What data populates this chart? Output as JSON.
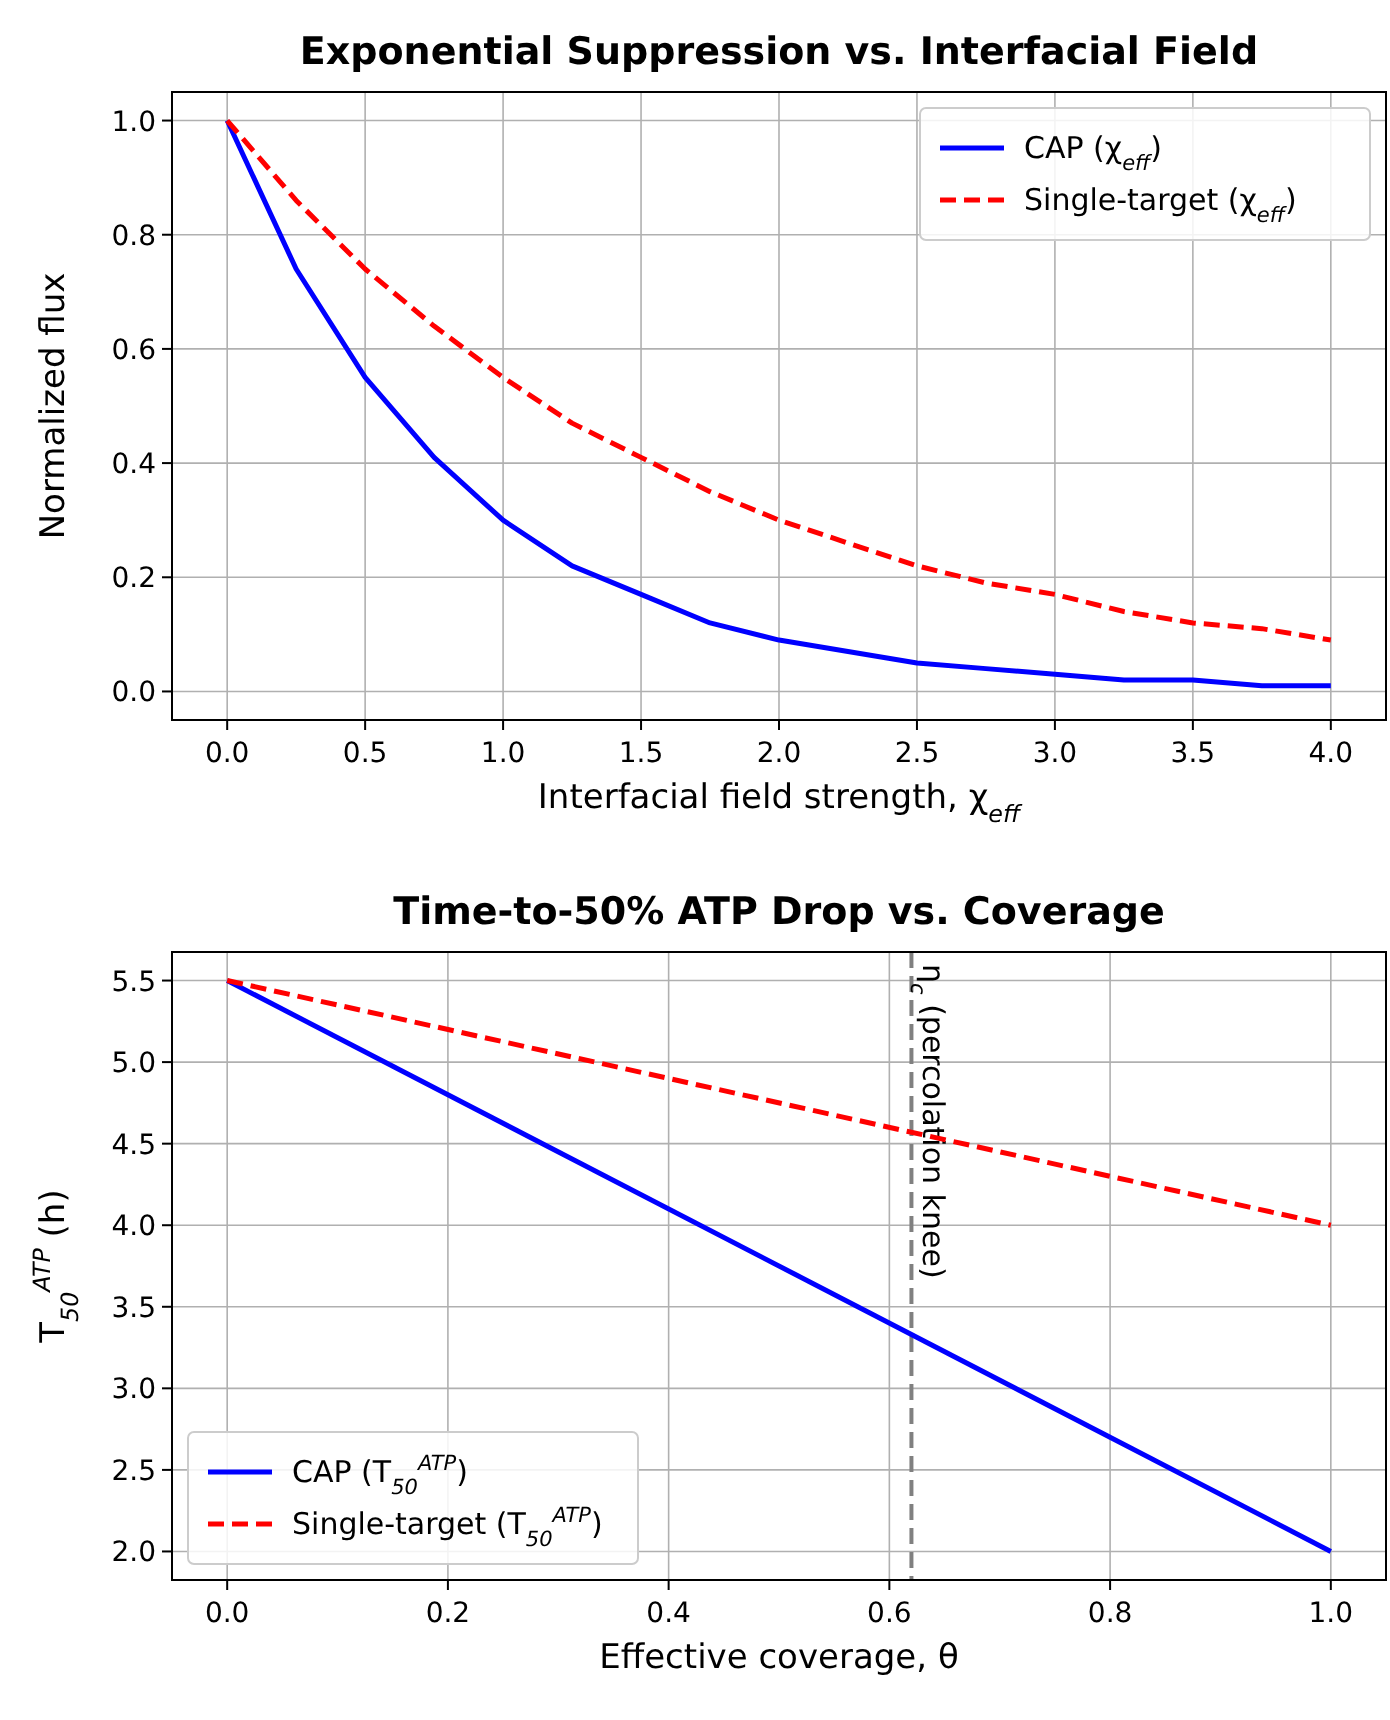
{
  "chart_data": [
    {
      "type": "line",
      "title": "Exponential Suppression vs. Interfacial Field",
      "xlabel": "Interfacial field strength, χ$_{eff}$",
      "ylabel": "Normalized flux",
      "x": [
        0,
        0.25,
        0.5,
        0.75,
        1,
        1.25,
        1.5,
        1.75,
        2,
        2.25,
        2.5,
        2.75,
        3,
        3.25,
        3.5,
        3.75,
        4
      ],
      "series": [
        {
          "name": "CAP (χ$_{eff}$)",
          "color": "#0000ff",
          "line_style": "solid",
          "values": [
            1,
            0.74,
            0.55,
            0.41,
            0.3,
            0.22,
            0.17,
            0.12,
            0.09,
            0.07,
            0.05,
            0.04,
            0.03,
            0.02,
            0.02,
            0.01,
            0.01
          ]
        },
        {
          "name": "Single-target (χ$_{eff}$)",
          "color": "#ff0000",
          "line_style": "dashed",
          "values": [
            1,
            0.86,
            0.74,
            0.64,
            0.55,
            0.47,
            0.41,
            0.35,
            0.3,
            0.26,
            0.22,
            0.19,
            0.17,
            0.14,
            0.12,
            0.11,
            0.09
          ]
        }
      ],
      "xlim": [
        -0.2,
        4.2
      ],
      "xticks": [
        {
          "value": 0,
          "label": "0.0"
        },
        0.5,
        {
          "value": 1,
          "label": "1.0"
        },
        1.5,
        {
          "value": 2,
          "label": "2.0"
        },
        2.5,
        {
          "value": 3,
          "label": "3.0"
        },
        3.5,
        {
          "value": 4,
          "label": "4.0"
        }
      ],
      "ylim": [
        -0.05,
        1.05
      ],
      "yticks": [
        {
          "value": 0,
          "label": "0.0"
        },
        0.2,
        0.4,
        0.6,
        0.8,
        {
          "value": 1,
          "label": "1.0"
        }
      ],
      "grid": true,
      "legend": "top right"
    },
    {
      "type": "line",
      "title": "Time-to-50% ATP Drop vs. Coverage",
      "xlabel": "Effective coverage, θ",
      "ylabel": "T$_{50}$$^{ATP}$ (h)",
      "x": [
        0,
        1
      ],
      "series": [
        {
          "name": "CAP (T$_{50}$$^{ATP}$)",
          "color": "#0000ff",
          "line_style": "solid",
          "values": [
            5.5,
            2.0
          ]
        },
        {
          "name": "Single-target (T$_{50}$$^{ATP}$)",
          "color": "#ff0000",
          "line_style": "dashed",
          "values": [
            5.5,
            4.0
          ]
        }
      ],
      "ref_lines": [
        {
          "axis": "x",
          "value": 0.62,
          "label": "η$_{c}$ (percolation knee)",
          "color": "#808080",
          "line_style": "dashed"
        }
      ],
      "xlim": [
        -0.05,
        1.05
      ],
      "xticks": [
        {
          "value": 0,
          "label": "0.0"
        },
        0.2,
        0.4,
        0.6,
        0.8,
        {
          "value": 1,
          "label": "1.0"
        }
      ],
      "ylim": [
        1.825,
        5.675
      ],
      "yticks": [
        {
          "value": 2,
          "label": "2.0"
        },
        2.5,
        {
          "value": 3,
          "label": "3.0"
        },
        3.5,
        {
          "value": 4,
          "label": "4.0"
        },
        4.5,
        {
          "value": 5,
          "label": "5.0"
        },
        5.5
      ],
      "grid": true,
      "legend": "bottom left"
    }
  ]
}
